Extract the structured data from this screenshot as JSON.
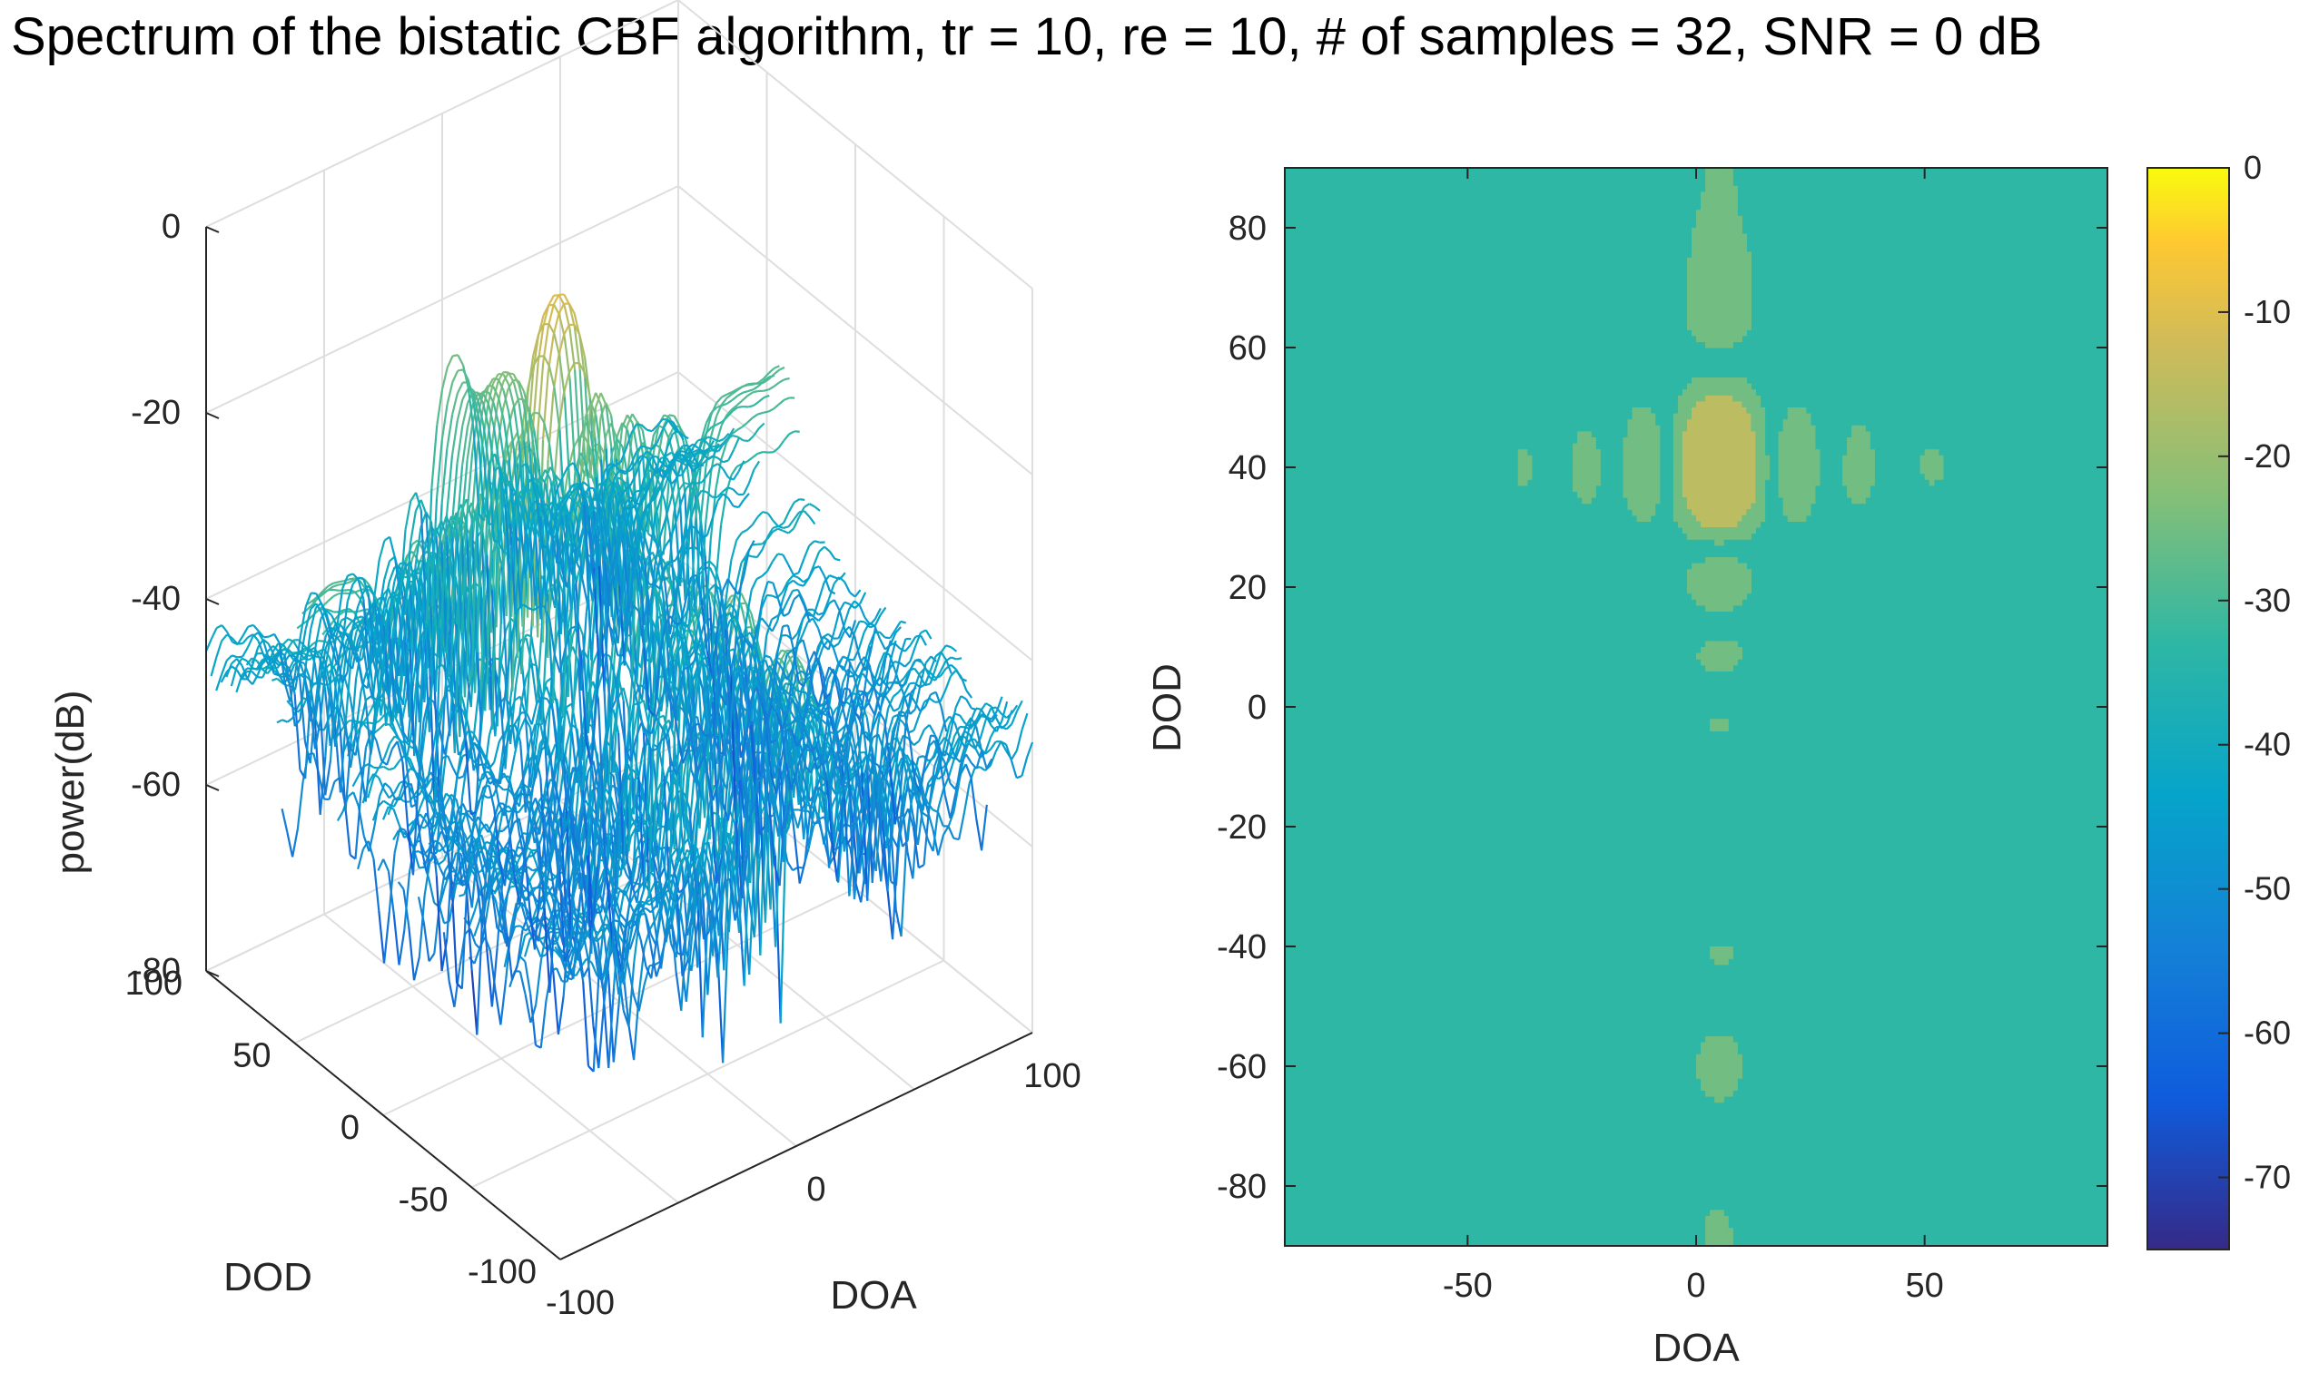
{
  "chart_data": [
    {
      "type": "surface",
      "title": "Spectrum of the bistatic CBF algorithm, tr = 10, re = 10, # of samples = 32, SNR = 0 dB",
      "xlabel": "DOA",
      "ylabel": "DOD",
      "zlabel": "power(dB)",
      "xlim": [
        -100,
        100
      ],
      "ylim": [
        -100,
        100
      ],
      "zlim": [
        -80,
        0
      ],
      "x_ticks": [
        "-100",
        "0",
        "100"
      ],
      "y_ticks": [
        "-100",
        "-50",
        "0",
        "50",
        "100"
      ],
      "z_ticks": [
        "0",
        "-20",
        "-40",
        "-60",
        "-80"
      ],
      "grid": true,
      "peak": {
        "doa": 5,
        "dod": 40,
        "power": -10
      },
      "colormap": "parula"
    },
    {
      "type": "contour",
      "xlabel": "DOA",
      "ylabel": "DOD",
      "xlim": [
        -90,
        90
      ],
      "ylim": [
        -90,
        90
      ],
      "x_ticks": [
        "-50",
        "0",
        "50"
      ],
      "y_ticks": [
        "80",
        "60",
        "40",
        "20",
        "0",
        "-20",
        "-40",
        "-60",
        "-80"
      ],
      "colorbar_ticks": [
        "0",
        "-10",
        "-20",
        "-30",
        "-40",
        "-50",
        "-60",
        "-70"
      ],
      "colorbar_range": [
        -75,
        0
      ],
      "peak": {
        "doa": 5,
        "dod": 40,
        "power": -10
      },
      "colormap": "parula"
    }
  ]
}
